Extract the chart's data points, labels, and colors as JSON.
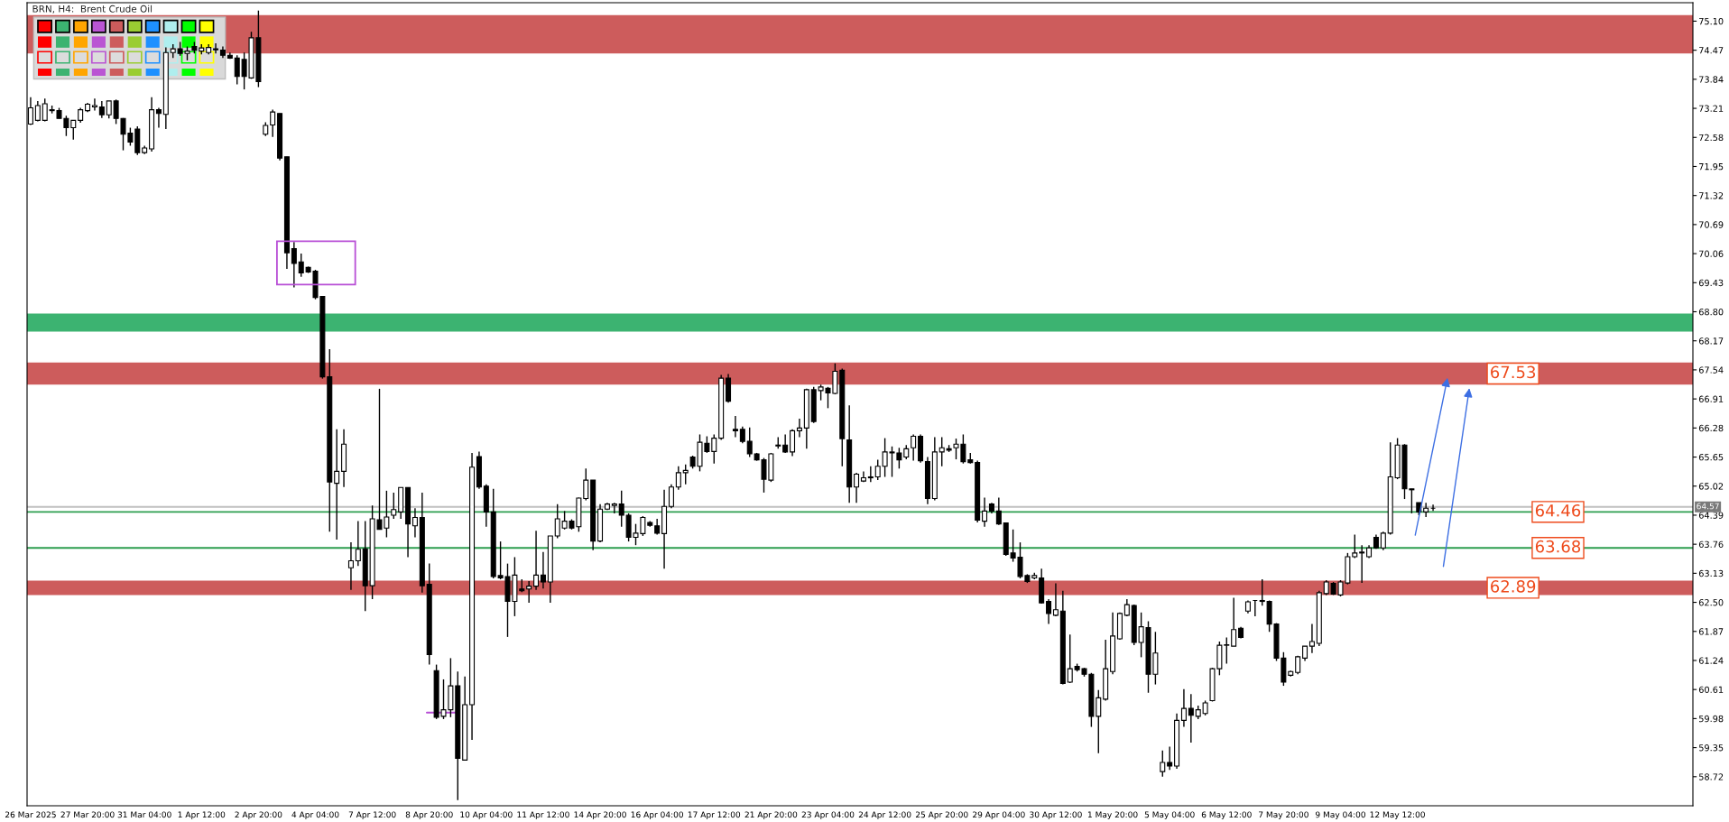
{
  "chart_data": {
    "type": "candlestick",
    "title": "BRN, H4:  Brent Crude Oil",
    "categories": [
      "26 Mar 2025",
      null,
      null,
      null,
      null,
      null,
      null,
      null,
      "27 Mar 20:00",
      null,
      null,
      null,
      null,
      null,
      null,
      null,
      "31 Mar 04:00",
      null,
      null,
      null,
      null,
      null,
      null,
      null,
      "1 Apr 12:00",
      null,
      null,
      null,
      null,
      null,
      null,
      null,
      "2 Apr 20:00",
      null,
      null,
      null,
      null,
      null,
      null,
      null,
      "4 Apr 04:00",
      null,
      null,
      null,
      null,
      null,
      null,
      null,
      "7 Apr 12:00",
      null,
      null,
      null,
      null,
      null,
      null,
      null,
      "8 Apr 20:00",
      null,
      null,
      null,
      null,
      null,
      null,
      null,
      "10 Apr 04:00",
      null,
      null,
      null,
      null,
      null,
      null,
      null,
      "11 Apr 12:00",
      null,
      null,
      null,
      null,
      null,
      null,
      null,
      "14 Apr 20:00",
      null,
      null,
      null,
      null,
      null,
      null,
      null,
      "16 Apr 04:00",
      null,
      null,
      null,
      null,
      null,
      null,
      null,
      "17 Apr 12:00",
      null,
      null,
      null,
      null,
      null,
      null,
      null,
      "21 Apr 20:00",
      null,
      null,
      null,
      null,
      null,
      null,
      null,
      "23 Apr 04:00",
      null,
      null,
      null,
      null,
      null,
      null,
      null,
      "24 Apr 12:00",
      null,
      null,
      null,
      null,
      null,
      null,
      null,
      "25 Apr 20:00",
      null,
      null,
      null,
      null,
      null,
      null,
      null,
      "29 Apr 04:00",
      null,
      null,
      null,
      null,
      null,
      null,
      null,
      "30 Apr 12:00",
      null,
      null,
      null,
      null,
      null,
      null,
      null,
      "1 May 20:00",
      null,
      null,
      null,
      null,
      null,
      null,
      null,
      "5 May 04:00",
      null,
      null,
      null,
      null,
      null,
      null,
      null,
      "6 May 12:00",
      null,
      null,
      null,
      null,
      null,
      null,
      null,
      "7 May 20:00",
      null,
      null,
      null,
      null,
      null,
      null,
      null,
      "9 May 04:00",
      null,
      null,
      null,
      null,
      null,
      null,
      null,
      "12 May 12:00",
      null,
      null,
      null,
      null,
      null,
      null,
      null,
      null,
      null,
      null,
      null,
      null,
      null,
      null,
      null,
      null,
      null,
      null,
      null,
      null,
      null,
      null,
      null,
      null,
      null,
      null,
      null,
      null,
      null,
      null,
      null,
      null,
      null,
      null,
      null,
      null,
      null,
      null,
      null,
      null,
      null
    ],
    "ohlc": [
      [
        72.87,
        73.45,
        72.85,
        73.22
      ],
      [
        72.95,
        73.37,
        72.93,
        73.27
      ],
      [
        72.95,
        73.42,
        72.93,
        73.31
      ],
      [
        73.16,
        73.27,
        73.1,
        73.18
      ],
      [
        73.16,
        73.22,
        72.99,
        72.99
      ],
      [
        72.99,
        73.05,
        72.61,
        72.79
      ],
      [
        72.79,
        72.95,
        72.53,
        72.95
      ],
      [
        72.95,
        73.22,
        72.9,
        73.18
      ],
      [
        73.16,
        73.33,
        73.13,
        73.3
      ],
      [
        73.24,
        73.42,
        73.16,
        73.27
      ],
      [
        73.24,
        73.37,
        73.0,
        73.07
      ],
      [
        73.07,
        73.37,
        72.99,
        73.37
      ],
      [
        73.37,
        73.4,
        72.87,
        72.99
      ],
      [
        72.99,
        73.0,
        72.3,
        72.65
      ],
      [
        72.67,
        72.79,
        72.4,
        72.48
      ],
      [
        72.76,
        72.82,
        72.2,
        72.25
      ],
      [
        72.25,
        72.4,
        72.22,
        72.35
      ],
      [
        72.33,
        73.45,
        72.27,
        73.18
      ],
      [
        73.18,
        73.22,
        72.79,
        73.1
      ],
      [
        73.08,
        74.53,
        72.76,
        74.42
      ],
      [
        74.42,
        74.6,
        74.3,
        74.5
      ],
      [
        74.5,
        74.65,
        74.35,
        74.4
      ],
      [
        74.4,
        74.55,
        74.25,
        74.45
      ],
      [
        74.55,
        74.65,
        74.4,
        74.47
      ],
      [
        74.45,
        74.6,
        74.38,
        74.52
      ],
      [
        74.42,
        74.6,
        74.38,
        74.53
      ],
      [
        74.5,
        74.62,
        74.4,
        74.48
      ],
      [
        74.47,
        74.55,
        74.3,
        74.36
      ],
      [
        74.36,
        74.42,
        74.28,
        74.3
      ],
      [
        74.3,
        74.36,
        73.73,
        73.9
      ],
      [
        74.27,
        74.42,
        73.62,
        73.9
      ],
      [
        73.87,
        74.87,
        73.85,
        74.74
      ],
      [
        74.74,
        75.33,
        73.67,
        73.79
      ],
      [
        72.65,
        72.91,
        72.61,
        72.84
      ],
      [
        72.85,
        73.18,
        72.59,
        73.13
      ],
      [
        73.1,
        73.1,
        72.08,
        72.13
      ],
      [
        72.16,
        72.16,
        69.73,
        70.08
      ],
      [
        70.17,
        70.31,
        69.33,
        69.85
      ],
      [
        69.88,
        70.06,
        69.56,
        69.64
      ],
      [
        69.76,
        69.78,
        69.64,
        69.66
      ],
      [
        69.68,
        69.71,
        69.07,
        69.11
      ],
      [
        69.13,
        69.13,
        67.35,
        67.39
      ],
      [
        67.39,
        67.99,
        64.03,
        65.11
      ],
      [
        65.08,
        66.25,
        63.86,
        65.34
      ],
      [
        65.34,
        66.25,
        65.0,
        65.93
      ],
      [
        63.25,
        63.8,
        62.77,
        63.4
      ],
      [
        63.4,
        64.26,
        63.29,
        63.65
      ],
      [
        63.66,
        64.26,
        62.31,
        62.86
      ],
      [
        62.86,
        64.6,
        62.57,
        64.31
      ],
      [
        64.29,
        67.13,
        64.08,
        64.08
      ],
      [
        64.11,
        64.92,
        63.91,
        64.35
      ],
      [
        64.39,
        64.88,
        64.31,
        64.51
      ],
      [
        64.46,
        64.99,
        64.31,
        64.99
      ],
      [
        64.99,
        64.99,
        63.48,
        64.2
      ],
      [
        64.16,
        64.54,
        63.91,
        64.34
      ],
      [
        64.34,
        64.88,
        62.71,
        62.86
      ],
      [
        62.89,
        63.34,
        61.15,
        61.37
      ],
      [
        61.02,
        61.15,
        59.97,
        60.01
      ],
      [
        60.03,
        60.83,
        59.97,
        60.17
      ],
      [
        60.17,
        61.29,
        60.01,
        60.69
      ],
      [
        60.69,
        61.0,
        58.21,
        59.12
      ],
      [
        59.08,
        60.89,
        59.08,
        60.28
      ],
      [
        60.28,
        65.74,
        59.52,
        65.43
      ],
      [
        65.66,
        65.77,
        64.96,
        65.0
      ],
      [
        65.02,
        65.06,
        64.14,
        64.46
      ],
      [
        64.46,
        64.96,
        63.02,
        63.06
      ],
      [
        63.08,
        63.82,
        63.0,
        63.03
      ],
      [
        63.06,
        63.34,
        61.75,
        62.52
      ],
      [
        62.52,
        63.48,
        62.2,
        63.09
      ],
      [
        62.79,
        63.0,
        62.72,
        62.75
      ],
      [
        62.79,
        62.96,
        62.49,
        62.85
      ],
      [
        62.85,
        64.05,
        62.77,
        63.09
      ],
      [
        63.09,
        63.59,
        62.8,
        62.94
      ],
      [
        62.94,
        63.94,
        62.49,
        63.94
      ],
      [
        63.94,
        64.63,
        63.89,
        64.31
      ],
      [
        64.11,
        64.48,
        64.08,
        64.26
      ],
      [
        64.26,
        64.3,
        64.08,
        64.11
      ],
      [
        64.14,
        64.77,
        64.03,
        64.76
      ],
      [
        64.75,
        65.4,
        64.71,
        65.15
      ],
      [
        65.15,
        65.15,
        63.63,
        63.83
      ],
      [
        63.83,
        64.63,
        63.8,
        64.52
      ],
      [
        64.52,
        64.66,
        64.5,
        64.63
      ],
      [
        64.6,
        64.66,
        64.43,
        64.63
      ],
      [
        64.63,
        64.92,
        64.14,
        64.39
      ],
      [
        64.39,
        64.43,
        63.82,
        63.91
      ],
      [
        63.91,
        64.2,
        63.74,
        64.0
      ],
      [
        63.99,
        64.37,
        63.94,
        64.34
      ],
      [
        64.23,
        64.26,
        64.14,
        64.17
      ],
      [
        64.16,
        64.31,
        63.97,
        64.0
      ],
      [
        63.99,
        64.94,
        63.23,
        64.58
      ],
      [
        64.58,
        65.06,
        64.54,
        65.0
      ],
      [
        65.0,
        65.45,
        64.94,
        65.31
      ],
      [
        65.31,
        65.49,
        65.06,
        65.36
      ],
      [
        65.65,
        65.68,
        65.4,
        65.45
      ],
      [
        65.45,
        66.14,
        65.34,
        65.97
      ],
      [
        65.95,
        66.1,
        65.74,
        65.77
      ],
      [
        65.77,
        66.14,
        65.51,
        66.06
      ],
      [
        66.06,
        67.43,
        66.02,
        67.36
      ],
      [
        67.36,
        67.45,
        66.83,
        66.86
      ],
      [
        66.25,
        66.54,
        66.08,
        66.22
      ],
      [
        66.25,
        66.31,
        65.95,
        65.99
      ],
      [
        65.99,
        66.29,
        65.65,
        65.72
      ],
      [
        65.72,
        65.74,
        65.57,
        65.59
      ],
      [
        65.59,
        65.63,
        64.88,
        65.17
      ],
      [
        65.15,
        65.74,
        65.11,
        65.72
      ],
      [
        65.89,
        66.08,
        65.83,
        65.91
      ],
      [
        65.91,
        66.14,
        65.74,
        65.76
      ],
      [
        65.76,
        66.25,
        65.67,
        66.22
      ],
      [
        66.22,
        66.48,
        66.08,
        66.28
      ],
      [
        66.28,
        67.13,
        65.83,
        67.11
      ],
      [
        67.11,
        67.17,
        66.39,
        66.42
      ],
      [
        67.09,
        67.22,
        66.88,
        67.17
      ],
      [
        67.14,
        67.17,
        66.71,
        67.04
      ],
      [
        67.03,
        67.68,
        67.01,
        67.51
      ],
      [
        67.53,
        67.57,
        65.45,
        66.05
      ],
      [
        66.02,
        66.77,
        64.66,
        65.0
      ],
      [
        65.0,
        65.31,
        64.66,
        65.28
      ],
      [
        65.13,
        65.34,
        65.11,
        65.2
      ],
      [
        65.2,
        65.45,
        65.11,
        65.22
      ],
      [
        65.22,
        65.59,
        65.15,
        65.45
      ],
      [
        65.45,
        66.06,
        65.22,
        65.76
      ],
      [
        65.76,
        65.88,
        65.22,
        65.74
      ],
      [
        65.74,
        65.85,
        65.4,
        65.59
      ],
      [
        65.65,
        65.91,
        65.6,
        65.83
      ],
      [
        65.85,
        66.14,
        65.57,
        66.1
      ],
      [
        66.1,
        66.14,
        65.53,
        65.57
      ],
      [
        65.55,
        65.65,
        64.63,
        64.75
      ],
      [
        64.75,
        66.08,
        64.71,
        65.76
      ],
      [
        65.76,
        66.08,
        65.45,
        65.85
      ],
      [
        65.83,
        65.91,
        65.76,
        65.8
      ],
      [
        65.85,
        66.05,
        65.6,
        65.93
      ],
      [
        65.93,
        66.14,
        65.51,
        65.55
      ],
      [
        65.59,
        65.74,
        65.51,
        65.53
      ],
      [
        65.53,
        65.57,
        64.23,
        64.28
      ],
      [
        64.26,
        64.77,
        64.14,
        64.48
      ],
      [
        64.63,
        64.66,
        64.43,
        64.48
      ],
      [
        64.48,
        64.77,
        64.18,
        64.2
      ],
      [
        64.22,
        64.23,
        63.51,
        63.54
      ],
      [
        63.57,
        64.08,
        63.38,
        63.46
      ],
      [
        63.48,
        63.8,
        63.02,
        63.06
      ],
      [
        63.08,
        63.11,
        62.92,
        62.95
      ],
      [
        63.03,
        63.14,
        63.0,
        63.08
      ],
      [
        63.03,
        63.23,
        62.47,
        62.49
      ],
      [
        62.52,
        62.57,
        62.03,
        62.26
      ],
      [
        62.22,
        62.91,
        62.2,
        62.34
      ],
      [
        62.31,
        62.75,
        60.72,
        60.74
      ],
      [
        60.77,
        61.8,
        60.75,
        61.06
      ],
      [
        61.11,
        61.17,
        61.0,
        61.04
      ],
      [
        61.06,
        61.08,
        60.89,
        60.94
      ],
      [
        60.94,
        60.97,
        59.8,
        60.03
      ],
      [
        60.03,
        60.6,
        59.23,
        60.43
      ],
      [
        60.4,
        61.69,
        60.37,
        61.06
      ],
      [
        61.0,
        62.28,
        60.94,
        61.77
      ],
      [
        61.71,
        62.28,
        61.69,
        62.26
      ],
      [
        62.22,
        62.57,
        62.2,
        62.45
      ],
      [
        62.43,
        62.45,
        61.57,
        61.63
      ],
      [
        61.63,
        62.28,
        61.31,
        61.97
      ],
      [
        61.95,
        62.09,
        60.54,
        60.94
      ],
      [
        60.94,
        61.86,
        60.72,
        61.4
      ],
      [
        58.83,
        59.29,
        58.72,
        59.03
      ],
      [
        59.03,
        59.37,
        58.87,
        58.95
      ],
      [
        58.95,
        60.09,
        58.89,
        59.94
      ],
      [
        59.94,
        60.62,
        59.8,
        60.2
      ],
      [
        60.2,
        60.51,
        59.46,
        60.05
      ],
      [
        60.03,
        60.26,
        59.97,
        60.17
      ],
      [
        60.09,
        60.37,
        60.05,
        60.32
      ],
      [
        60.37,
        61.08,
        60.35,
        61.06
      ],
      [
        61.06,
        61.65,
        60.92,
        61.57
      ],
      [
        61.57,
        61.74,
        61.17,
        61.58
      ],
      [
        61.55,
        62.6,
        61.55,
        61.91
      ],
      [
        61.94,
        61.97,
        61.72,
        61.74
      ],
      [
        62.31,
        62.54,
        62.26,
        62.51
      ],
      [
        62.54,
        62.54,
        62.2,
        62.54
      ],
      [
        62.54,
        63.0,
        62.43,
        62.52
      ],
      [
        62.52,
        62.54,
        61.86,
        62.03
      ],
      [
        62.03,
        62.05,
        61.23,
        61.29
      ],
      [
        61.29,
        61.42,
        60.69,
        60.77
      ],
      [
        60.92,
        61.02,
        60.89,
        61.0
      ],
      [
        60.98,
        61.34,
        60.94,
        61.32
      ],
      [
        61.29,
        61.55,
        61.23,
        61.55
      ],
      [
        61.55,
        62.03,
        61.4,
        61.65
      ],
      [
        61.61,
        62.75,
        61.55,
        62.71
      ],
      [
        62.69,
        62.98,
        62.66,
        62.94
      ],
      [
        62.91,
        62.94,
        62.66,
        62.68
      ],
      [
        62.66,
        62.98,
        62.63,
        62.94
      ],
      [
        62.92,
        63.57,
        62.89,
        63.49
      ],
      [
        63.49,
        63.97,
        63.46,
        63.57
      ],
      [
        63.57,
        63.74,
        62.92,
        63.59
      ],
      [
        63.49,
        63.74,
        63.46,
        63.68
      ],
      [
        63.91,
        63.97,
        63.66,
        63.68
      ],
      [
        63.68,
        64.03,
        63.63,
        64.0
      ],
      [
        64.0,
        65.97,
        63.97,
        65.22
      ],
      [
        65.2,
        66.06,
        65.17,
        65.91
      ],
      [
        65.91,
        65.93,
        64.74,
        64.96
      ],
      [
        64.96,
        64.96,
        64.43,
        64.94
      ],
      [
        64.66,
        64.66,
        64.39,
        64.46
      ],
      [
        64.46,
        64.66,
        64.35,
        64.54
      ],
      [
        64.54,
        64.62,
        64.48,
        64.54
      ],
      null,
      null,
      null,
      null,
      null,
      null,
      null,
      null,
      null,
      null,
      null,
      null,
      null,
      null,
      null,
      null,
      null,
      null,
      null,
      null,
      null,
      null,
      null,
      null,
      null,
      null,
      null,
      null,
      null,
      null,
      null,
      null,
      null,
      null,
      null,
      null
    ],
    "ylim": [
      58.09,
      75.5
    ],
    "yticks": [
      58.72,
      59.35,
      59.98,
      60.61,
      61.24,
      61.87,
      {
        "value": 62.5,
        "label": "62.50"
      },
      63.13,
      63.76,
      64.39,
      65.02,
      65.65,
      66.28,
      66.91,
      67.54,
      68.17,
      {
        "value": 68.8,
        "label": "68.80"
      },
      69.43,
      70.06,
      70.69,
      71.32,
      71.95,
      72.58,
      73.21,
      73.84,
      74.47,
      {
        "value": 75.1,
        "label": "75.10"
      }
    ],
    "bands": [
      {
        "axis": "y",
        "from": 74.4,
        "to": 75.23,
        "color": "#cd5c5c"
      },
      {
        "axis": "y",
        "from": 68.37,
        "to": 68.76,
        "color": "#3cb371"
      },
      {
        "axis": "y",
        "from": 67.22,
        "to": 67.7,
        "label": "67.53",
        "color": "#cd5c5c"
      },
      {
        "axis": "y",
        "from": 62.66,
        "to": 62.97,
        "label": "62.89",
        "color": "#cd5c5c"
      }
    ],
    "ref_lines": [
      {
        "axis": "y",
        "value": 64.57,
        "label": "64.57",
        "color": "#c0c0c0",
        "line_style": "solid"
      },
      {
        "axis": "y",
        "value": 64.46,
        "label": "64.46",
        "color": "#2e9e4f",
        "line_style": "solid"
      },
      {
        "axis": "y",
        "value": 63.68,
        "label": "63.68",
        "color": "#2e9e4f",
        "line_style": "solid"
      }
    ]
  }
}
